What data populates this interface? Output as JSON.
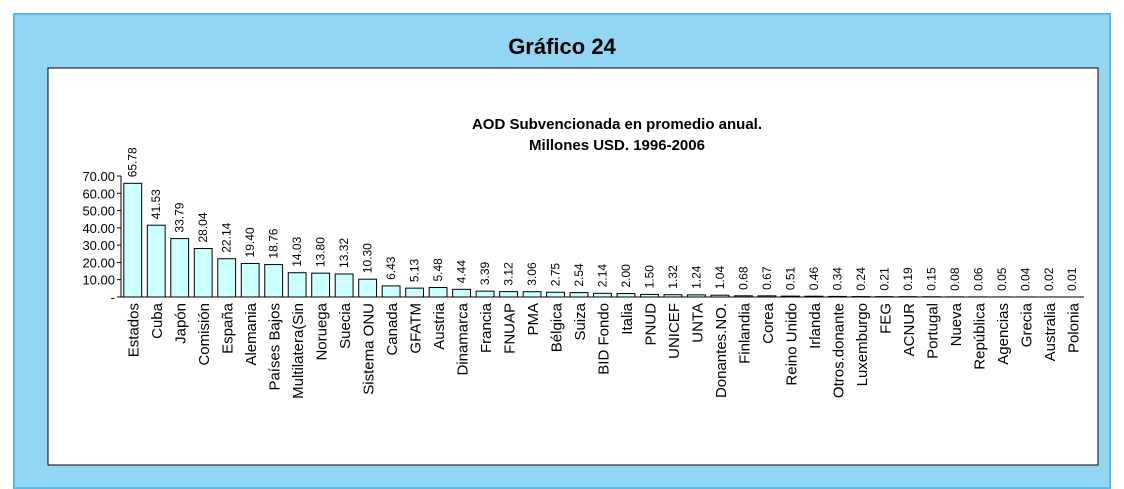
{
  "panel": {
    "title": "Gráfico 24"
  },
  "chart_data": {
    "type": "bar",
    "title": "AOD Subvencionada en promedio anual.",
    "subtitle": "Millones USD. 1996-2006",
    "categories": [
      "Estados",
      "Cuba",
      "Japón",
      "Comisión",
      "España",
      "Alemania",
      "Países Bajos",
      "Multilatera(Sin",
      "Noruega",
      "Suecia",
      "Sistema ONU",
      "Canada",
      "GFATM",
      "Austria",
      "Dinamarca",
      "Francia",
      "FNUAP",
      "PMA",
      "Bélgica",
      "Suiza",
      "BID Fondo",
      "Italia",
      "PNUD",
      "UNICEF",
      "UNTA",
      "Donantes.NO.",
      "Finlandia",
      "Corea",
      "Reino Unido",
      "Irlanda",
      "Otros.donante",
      "Luxemburgo",
      "FEG",
      "ACNUR",
      "Portugal",
      "Nueva",
      "República",
      "Agencias",
      "Grecia",
      "Australia",
      "Polonia"
    ],
    "values": [
      65.78,
      41.53,
      33.79,
      28.04,
      22.14,
      19.4,
      18.76,
      14.03,
      13.8,
      13.32,
      10.3,
      6.43,
      5.13,
      5.48,
      4.44,
      3.39,
      3.12,
      3.06,
      2.75,
      2.54,
      2.14,
      2.0,
      1.5,
      1.32,
      1.24,
      1.04,
      0.68,
      0.67,
      0.51,
      0.46,
      0.34,
      0.24,
      0.21,
      0.19,
      0.15,
      0.08,
      0.06,
      0.05,
      0.04,
      0.02,
      0.01
    ],
    "value_labels": [
      "65.78",
      "41.53",
      "33.79",
      "28.04",
      "22.14",
      "19.40",
      "18.76",
      "14.03",
      "13.80",
      "13.32",
      "10.30",
      "6.43",
      "5.13",
      "5.48",
      "4.44",
      "3.39",
      "3.12",
      "3.06",
      "2.75",
      "2.54",
      "2.14",
      "2.00",
      "1.50",
      "1.32",
      "1.24",
      "1.04",
      "0.68",
      "0.67",
      "0.51",
      "0.46",
      "0.34",
      "0.24",
      "0.21",
      "0.19",
      "0.15",
      "0.08",
      "0.06",
      "0.05",
      "0.04",
      "0.02",
      "0.01"
    ],
    "color": "#ccffff",
    "ylim": [
      0,
      70
    ],
    "yticks": [
      {
        "value": 0,
        "label": "-"
      },
      {
        "value": 10,
        "label": "10.00"
      },
      {
        "value": 20,
        "label": "20.00"
      },
      {
        "value": 30,
        "label": "30.00"
      },
      {
        "value": 40,
        "label": "40.00"
      },
      {
        "value": 50,
        "label": "50.00"
      },
      {
        "value": 60,
        "label": "60.00"
      },
      {
        "value": 70,
        "label": "70.00"
      }
    ],
    "grid": false
  }
}
